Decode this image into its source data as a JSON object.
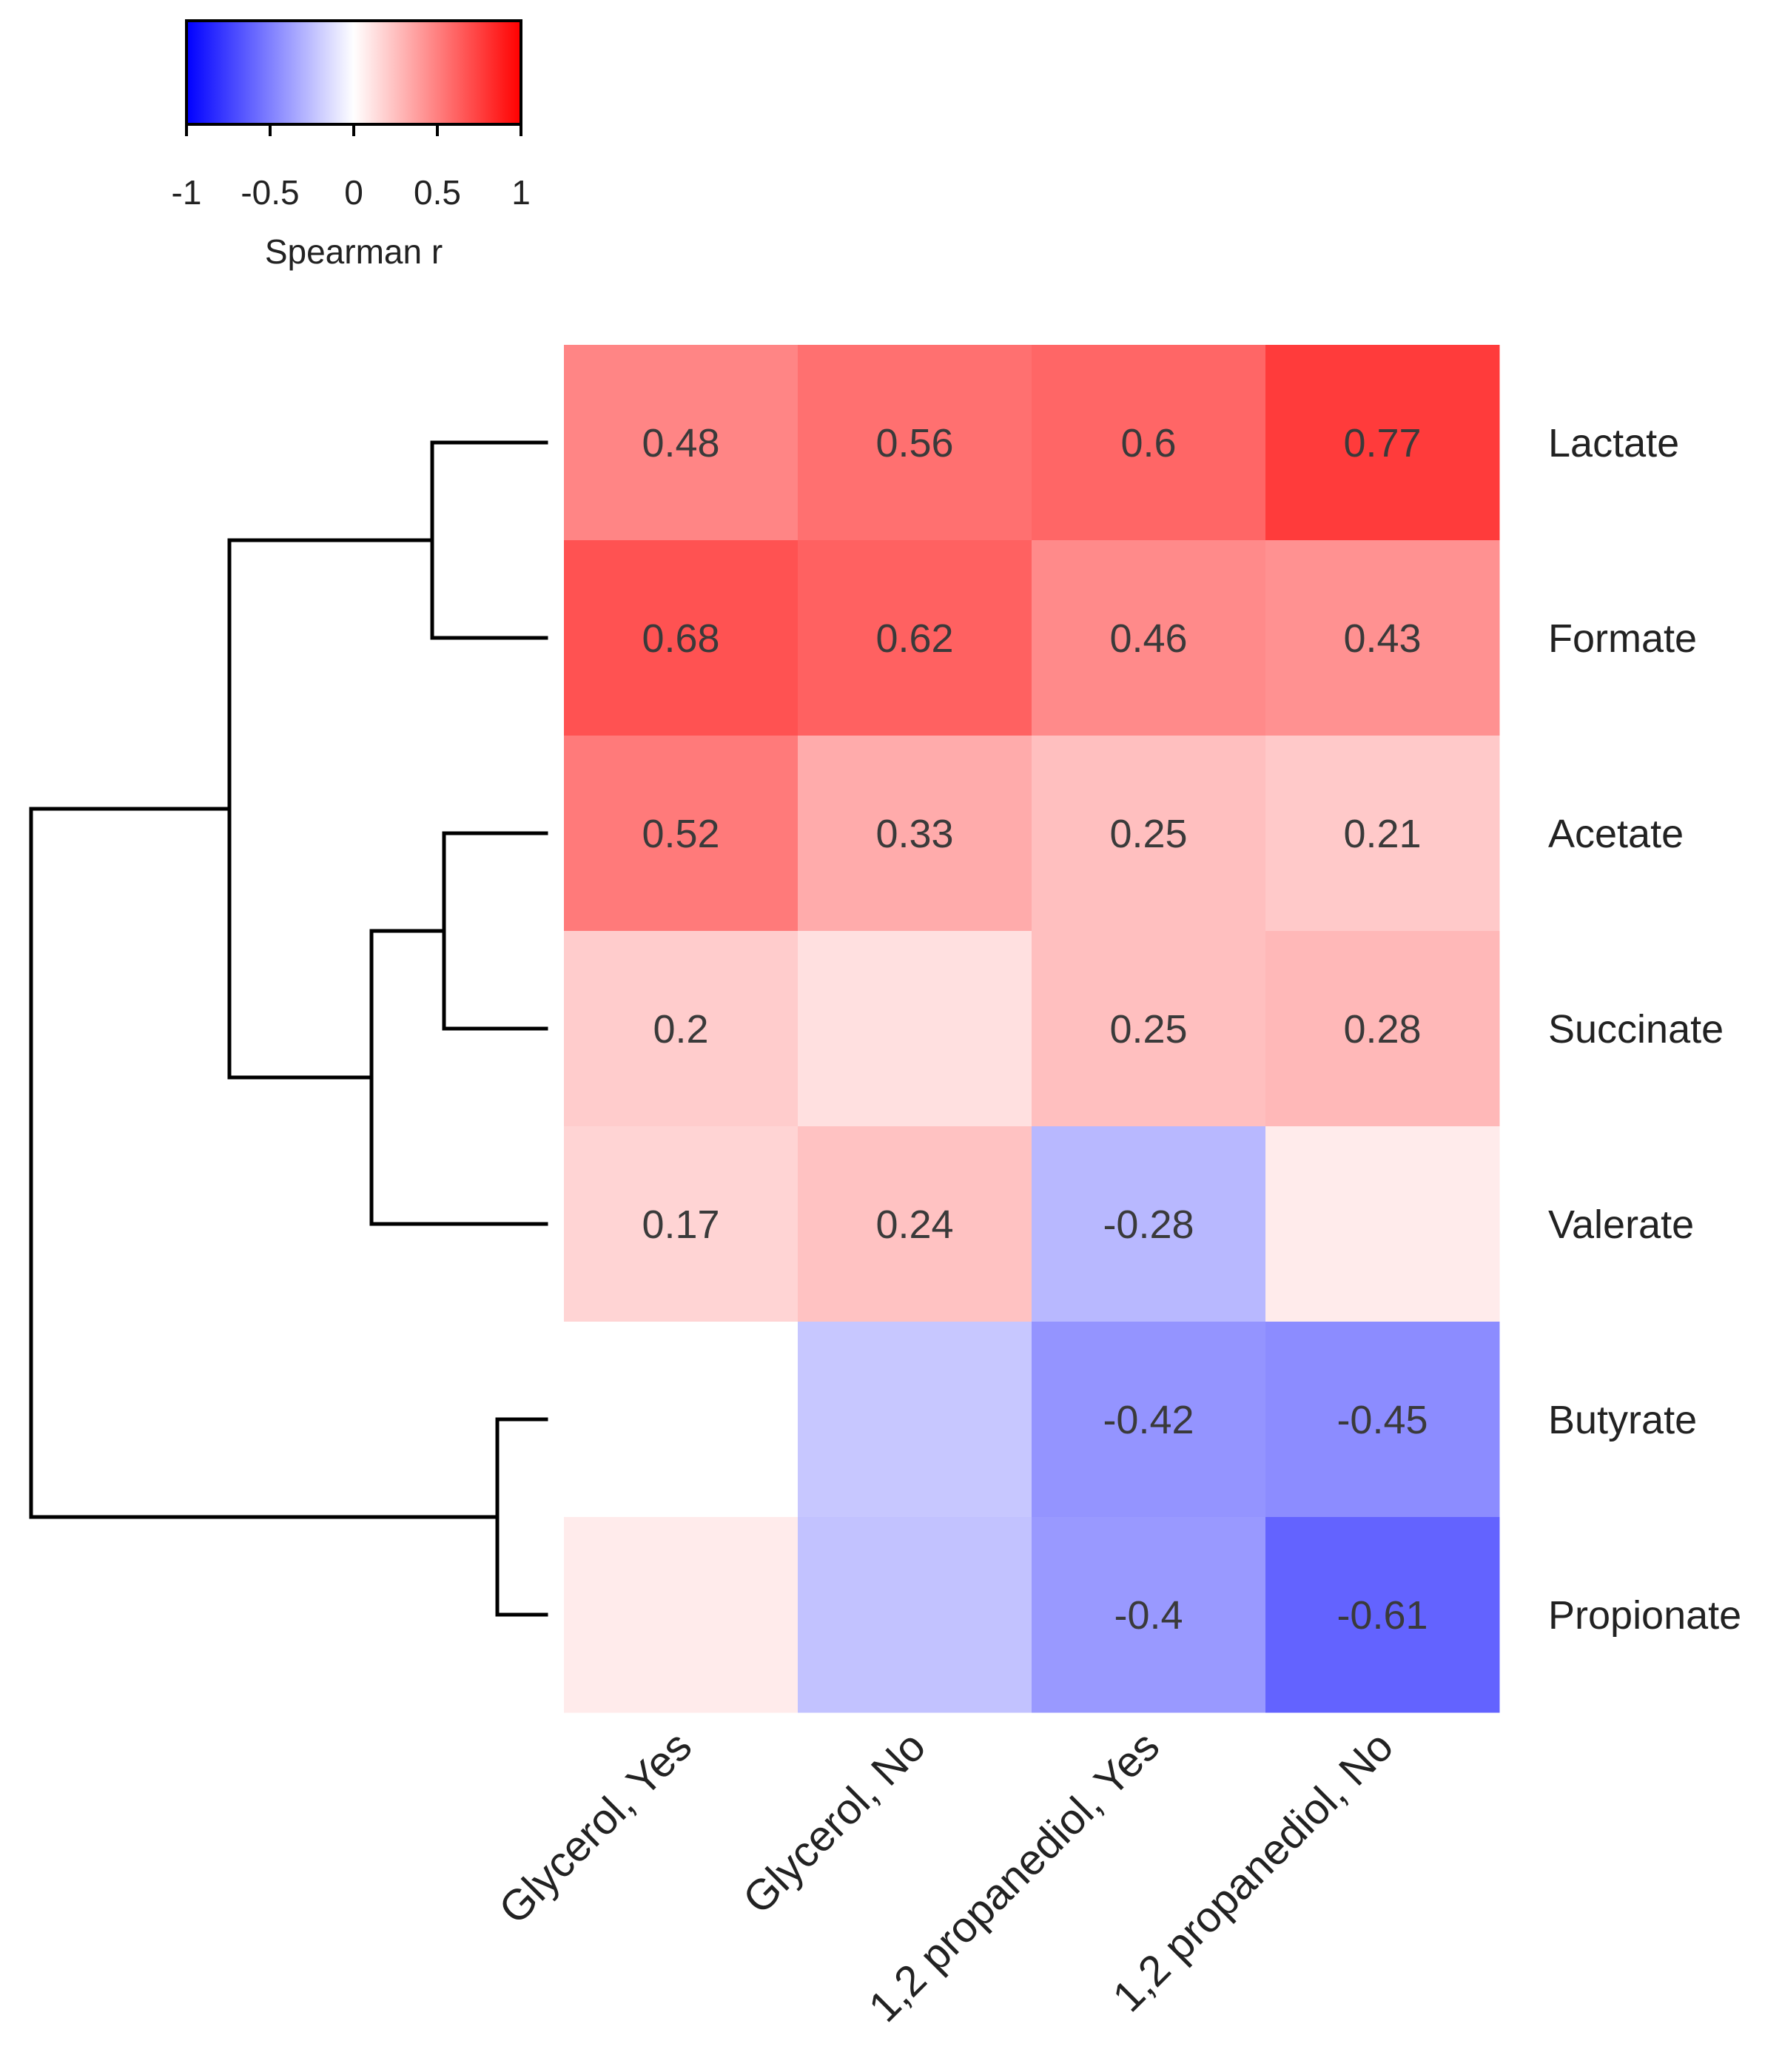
{
  "chart_data": {
    "type": "heatmap",
    "title": "",
    "columns": [
      "Glycerol, Yes",
      "Glycerol, No",
      "1,2 propanediol, Yes",
      "1,2 propanediol, No"
    ],
    "rows": [
      "Lactate",
      "Formate",
      "Acetate",
      "Succinate",
      "Valerate",
      "Butyrate",
      "Propionate"
    ],
    "values": [
      [
        0.48,
        0.56,
        0.6,
        0.77
      ],
      [
        0.68,
        0.62,
        0.46,
        0.43
      ],
      [
        0.52,
        0.33,
        0.25,
        0.21
      ],
      [
        0.2,
        0.12,
        0.25,
        0.28
      ],
      [
        0.17,
        0.24,
        -0.28,
        0.08
      ],
      [
        0.0,
        -0.22,
        -0.42,
        -0.45
      ],
      [
        0.08,
        -0.24,
        -0.4,
        -0.61
      ]
    ],
    "labels": [
      [
        "0.48",
        "0.56",
        "0.6",
        "0.77"
      ],
      [
        "0.68",
        "0.62",
        "0.46",
        "0.43"
      ],
      [
        "0.52",
        "0.33",
        "0.25",
        "0.21"
      ],
      [
        "0.2",
        "",
        "0.25",
        "0.28"
      ],
      [
        "0.17",
        "0.24",
        "-0.28",
        ""
      ],
      [
        "",
        "",
        "-0.42",
        "-0.45"
      ],
      [
        "",
        "",
        "-0.4",
        "-0.61"
      ]
    ],
    "color_scale": {
      "min": -1,
      "max": 1,
      "low_color": "#0000ff",
      "mid_color": "#ffffff",
      "high_color": "#ff0000",
      "title": "Spearman r",
      "ticks": [
        -1,
        -0.5,
        0,
        0.5,
        1
      ],
      "tick_labels": [
        "-1",
        "-0.5",
        "0",
        "0.5",
        "1"
      ]
    },
    "dendrogram": {
      "side": "left",
      "merges": [
        {
          "left": "Lactate",
          "right": "Formate"
        },
        {
          "left": "Acetate",
          "right": "Succinate"
        },
        {
          "left": "Acetate+Succinate",
          "right": "Valerate"
        },
        {
          "left": "Lactate+Formate",
          "right": "Acetate+Succinate+Valerate"
        },
        {
          "left": "Butyrate",
          "right": "Propionate"
        },
        {
          "left": "Lactate..Valerate",
          "right": "Butyrate+Propionate"
        }
      ]
    }
  }
}
